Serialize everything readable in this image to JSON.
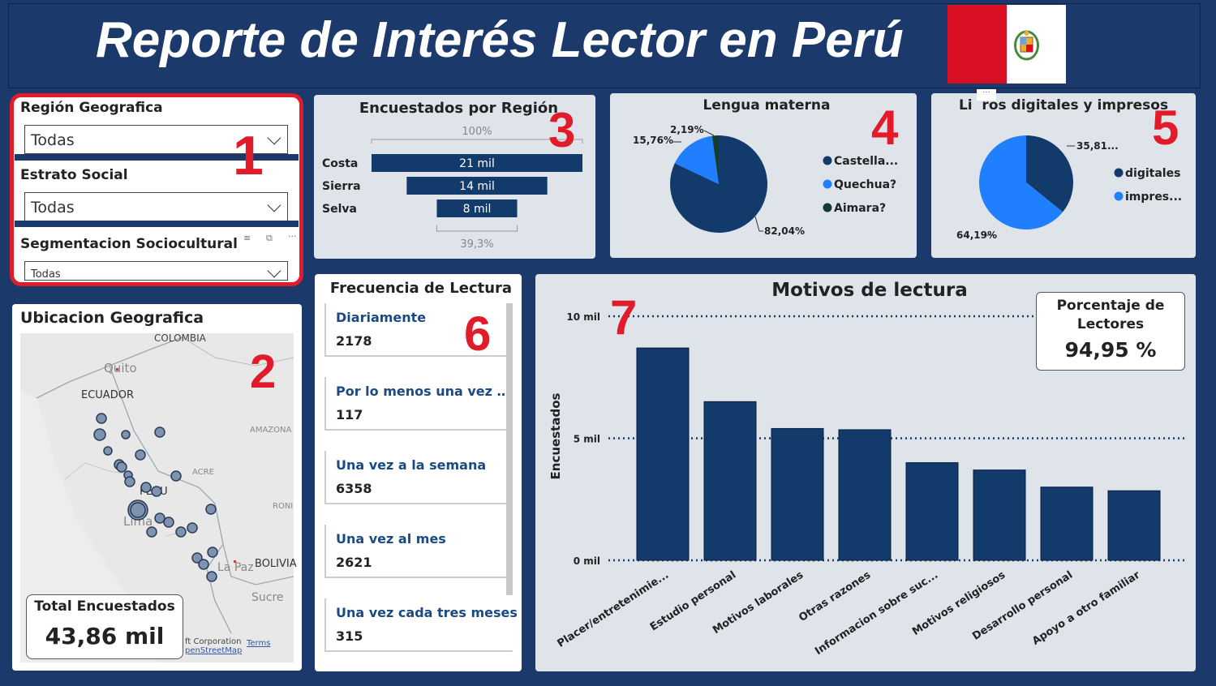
{
  "header": {
    "title": "Reporte de Interés Lector en Perú"
  },
  "markers": [
    "1",
    "2",
    "3",
    "4",
    "5",
    "6",
    "7"
  ],
  "slicers": [
    {
      "label": "Región Geografica",
      "value": "Todas"
    },
    {
      "label": "Estrato Social",
      "value": "Todas"
    },
    {
      "label": "Segmentacion Sociocultural",
      "value": "Todas"
    }
  ],
  "map": {
    "title": "Ubicacion Geografica",
    "labels": {
      "colombia": "COLOMBIA",
      "quito": "Quito",
      "ecuador": "ECUADOR",
      "amazona": "AMAZONA",
      "acre": "ACRE",
      "peru": "PERU",
      "rond": "RONI",
      "lima": "Lima",
      "bolivia": "BOLIVIA",
      "lapaz": "La Paz",
      "sucre": "Sucre"
    },
    "attribution": "ft Corporation",
    "attribution2": "penStreetMap",
    "terms": "Terms",
    "kpi_label": "Total Encuestados",
    "kpi_value": "43,86 mil"
  },
  "frecuencia": {
    "title": "Frecuencia de Lectura",
    "items": [
      {
        "label": "Diariamente",
        "value": "2178"
      },
      {
        "label": "Por lo menos una vez al a...",
        "value": "117"
      },
      {
        "label": "Una vez a la semana",
        "value": "6358"
      },
      {
        "label": "Una vez al mes",
        "value": "2621"
      },
      {
        "label": "Una vez cada tres meses",
        "value": "315"
      }
    ]
  },
  "kpi_lectores": {
    "label_line1": "Porcentaje de",
    "label_line2": "Lectores",
    "value": "94,95 %"
  },
  "colors": {
    "navy": "#123a6b",
    "blue": "#1f7fff",
    "dark_green": "#143d2e",
    "marker_red": "#e11b2a",
    "background": "#1b3a6b"
  },
  "chart_data": [
    {
      "type": "bar",
      "orientation": "horizontal-funnel",
      "title": "Encuestados por Región",
      "categories": [
        "Costa",
        "Sierra",
        "Selva"
      ],
      "values": [
        21,
        14,
        8
      ],
      "data_labels": [
        "21 mil",
        "14 mil",
        "8 mil"
      ],
      "top_label": "100%",
      "bottom_label": "39,3%"
    },
    {
      "type": "pie",
      "title": "Lengua materna",
      "categories": [
        "Castella...",
        "Quechua?",
        "Aimara?"
      ],
      "values": [
        82.04,
        15.76,
        2.19
      ],
      "data_labels": [
        "82,04%",
        "15,76%",
        "2,19%"
      ],
      "legend": "right"
    },
    {
      "type": "pie",
      "title": "Libros digitales y impresos",
      "title_shown": "Li  ros digitales y impresos",
      "categories": [
        "digitales",
        "impres..."
      ],
      "values": [
        35.81,
        64.19
      ],
      "data_labels": [
        "35,81...",
        "64,19%"
      ],
      "legend": "right"
    },
    {
      "type": "bar",
      "title": "Motivos de lectura",
      "ylabel": "Encuestados",
      "yticks": [
        "0 mil",
        "5 mil",
        "10 mil"
      ],
      "ylim": [
        0,
        10000
      ],
      "grid": true,
      "categories": [
        "Placer/entretenimie...",
        "Estudio personal",
        "Motivos laborales",
        "Otras razones",
        "Informacion sobre suc...",
        "Motivos religiosos",
        "Desarrollo personal",
        "Apoyo a otro familiar"
      ],
      "values": [
        8700,
        6500,
        5400,
        5350,
        4000,
        3700,
        3000,
        2850
      ]
    }
  ]
}
